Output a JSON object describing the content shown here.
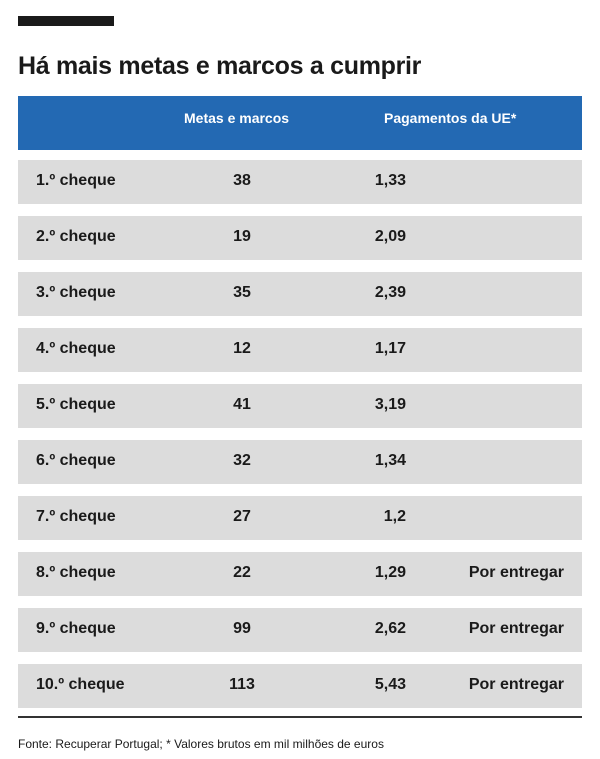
{
  "title": "Há mais metas e marcos a cumprir",
  "source": "Fonte: Recuperar Portugal; * Valores brutos em mil milhões de euros",
  "colors": {
    "header_bg": "#2369b3",
    "row_bg": "#dcdcdc",
    "text": "#1a1a1a"
  },
  "chart_data": {
    "type": "table",
    "columns": [
      "",
      "Metas e marcos",
      "Pagamentos da UE*",
      ""
    ],
    "rows": [
      {
        "label": "1.º cheque",
        "metas": "38",
        "pagamentos": "1,33",
        "status": ""
      },
      {
        "label": "2.º cheque",
        "metas": "19",
        "pagamentos": "2,09",
        "status": ""
      },
      {
        "label": "3.º  cheque",
        "metas": "35",
        "pagamentos": "2,39",
        "status": ""
      },
      {
        "label": "4.º  cheque",
        "metas": "12",
        "pagamentos": "1,17",
        "status": ""
      },
      {
        "label": "5.º  cheque",
        "metas": "41",
        "pagamentos": "3,19",
        "status": ""
      },
      {
        "label": "6.º  cheque",
        "metas": "32",
        "pagamentos": "1,34",
        "status": ""
      },
      {
        "label": "7.º  cheque",
        "metas": "27",
        "pagamentos": "1,2",
        "status": ""
      },
      {
        "label": "8.º  cheque",
        "metas": "22",
        "pagamentos": "1,29",
        "status": "Por entregar"
      },
      {
        "label": "9.º  cheque",
        "metas": "99",
        "pagamentos": "2,62",
        "status": "Por entregar"
      },
      {
        "label": "10.º  cheque",
        "metas": "113",
        "pagamentos": "5,43",
        "status": "Por entregar"
      }
    ]
  }
}
